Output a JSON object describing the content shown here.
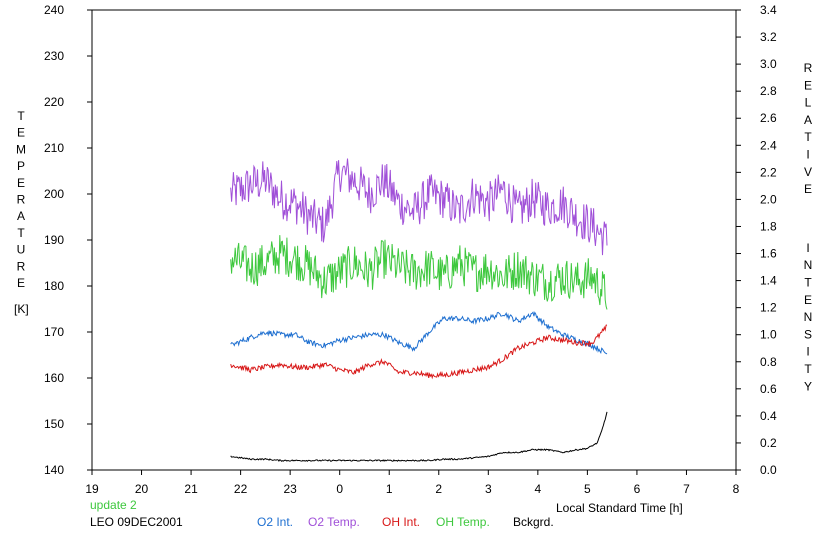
{
  "chart_data": {
    "type": "line",
    "xlabel": "Local Standard Time [h]",
    "ylabel_left": "TEMPERATURE",
    "ylabel_left_unit": "[K]",
    "ylabel_right": "RELATIVE INTENSITY",
    "x_ticks": [
      19,
      20,
      21,
      22,
      23,
      0,
      1,
      2,
      3,
      4,
      5,
      6,
      7,
      8
    ],
    "x_range": [
      19,
      32
    ],
    "ylim_left": [
      140,
      240
    ],
    "y_ticks_left": [
      140,
      150,
      160,
      170,
      180,
      190,
      200,
      210,
      220,
      230,
      240
    ],
    "ylim_right": [
      0.0,
      3.4
    ],
    "y_ticks_right": [
      "0.0",
      "0.2",
      "0.4",
      "0.6",
      "0.8",
      "1.0",
      "1.2",
      "1.4",
      "1.6",
      "1.8",
      "2.0",
      "2.2",
      "2.4",
      "2.6",
      "2.8",
      "3.0",
      "3.2",
      "3.4"
    ],
    "grid": false,
    "legend": [
      {
        "label": "O2 Int.",
        "color": "#1e6fd0"
      },
      {
        "label": "O2 Temp.",
        "color": "#a050d8"
      },
      {
        "label": "OH Int.",
        "color": "#d81818"
      },
      {
        "label": "OH Temp.",
        "color": "#3ec83e"
      },
      {
        "label": "Bckgrd.",
        "color": "#000000"
      }
    ],
    "annotations": {
      "update": "update 2",
      "station": "LEO 09DEC2001"
    },
    "series": [
      {
        "name": "O2 Temp.",
        "axis": "left",
        "color": "#a050d8",
        "noise": 4.5,
        "x": [
          21.8,
          22.2,
          22.5,
          22.8,
          23.1,
          23.4,
          23.7,
          24.0,
          24.3,
          24.6,
          24.9,
          25.2,
          25.5,
          25.8,
          26.1,
          26.4,
          26.7,
          27.0,
          27.3,
          27.6,
          27.9,
          28.2,
          28.5,
          28.8,
          29.1,
          29.4
        ],
        "y": [
          200,
          202,
          203,
          199,
          198,
          195,
          193,
          205,
          203,
          200,
          203,
          198,
          196,
          200,
          199,
          196,
          200,
          198,
          201,
          196,
          199,
          197,
          198,
          195,
          193,
          190
        ]
      },
      {
        "name": "OH Temp.",
        "axis": "left",
        "color": "#3ec83e",
        "noise": 4.5,
        "x": [
          21.8,
          22.2,
          22.5,
          22.8,
          23.1,
          23.4,
          23.7,
          24.0,
          24.3,
          24.6,
          24.9,
          25.2,
          25.5,
          25.8,
          26.1,
          26.4,
          26.7,
          27.0,
          27.3,
          27.6,
          27.9,
          28.2,
          28.5,
          28.8,
          29.1,
          29.4
        ],
        "y": [
          186,
          184,
          185,
          187,
          186,
          184,
          181,
          183,
          185,
          183,
          186,
          184,
          183,
          184,
          182,
          185,
          183,
          184,
          182,
          184,
          182,
          181,
          182,
          181,
          182,
          178
        ]
      },
      {
        "name": "O2 Int.",
        "axis": "right",
        "color": "#1e6fd0",
        "noise": 0.02,
        "x": [
          21.8,
          22.2,
          22.5,
          22.8,
          23.1,
          23.4,
          23.7,
          24.0,
          24.3,
          24.6,
          24.9,
          25.2,
          25.5,
          25.8,
          26.1,
          26.4,
          26.7,
          27.0,
          27.3,
          27.6,
          27.9,
          28.2,
          28.5,
          28.8,
          29.1,
          29.4
        ],
        "y": [
          0.92,
          0.98,
          1.02,
          1.0,
          1.0,
          0.94,
          0.92,
          0.96,
          0.98,
          1.0,
          1.0,
          0.94,
          0.9,
          1.02,
          1.12,
          1.12,
          1.1,
          1.12,
          1.16,
          1.1,
          1.16,
          1.06,
          1.0,
          0.96,
          0.92,
          0.86
        ]
      },
      {
        "name": "OH Int.",
        "axis": "right",
        "color": "#d81818",
        "noise": 0.02,
        "x": [
          21.8,
          22.2,
          22.5,
          22.8,
          23.1,
          23.4,
          23.7,
          24.0,
          24.3,
          24.6,
          24.9,
          25.2,
          25.5,
          25.8,
          26.1,
          26.4,
          26.7,
          27.0,
          27.3,
          27.6,
          27.9,
          28.2,
          28.5,
          28.8,
          29.1,
          29.4
        ],
        "y": [
          0.78,
          0.74,
          0.76,
          0.78,
          0.76,
          0.76,
          0.78,
          0.74,
          0.72,
          0.78,
          0.8,
          0.72,
          0.72,
          0.7,
          0.7,
          0.72,
          0.74,
          0.76,
          0.82,
          0.9,
          0.94,
          0.98,
          0.96,
          0.94,
          0.94,
          1.06
        ]
      },
      {
        "name": "Bckgrd.",
        "axis": "right",
        "color": "#000000",
        "noise": 0.005,
        "x": [
          21.8,
          22.2,
          22.5,
          22.8,
          23.1,
          23.4,
          23.7,
          24.0,
          24.3,
          24.6,
          24.9,
          25.2,
          25.5,
          25.8,
          26.1,
          26.4,
          26.7,
          27.0,
          27.3,
          27.6,
          27.9,
          28.2,
          28.5,
          28.8,
          29.0,
          29.2,
          29.3,
          29.4
        ],
        "y": [
          0.1,
          0.08,
          0.08,
          0.07,
          0.07,
          0.07,
          0.07,
          0.07,
          0.07,
          0.07,
          0.07,
          0.07,
          0.07,
          0.07,
          0.08,
          0.08,
          0.09,
          0.1,
          0.13,
          0.13,
          0.15,
          0.15,
          0.13,
          0.15,
          0.16,
          0.2,
          0.3,
          0.43
        ]
      }
    ]
  }
}
